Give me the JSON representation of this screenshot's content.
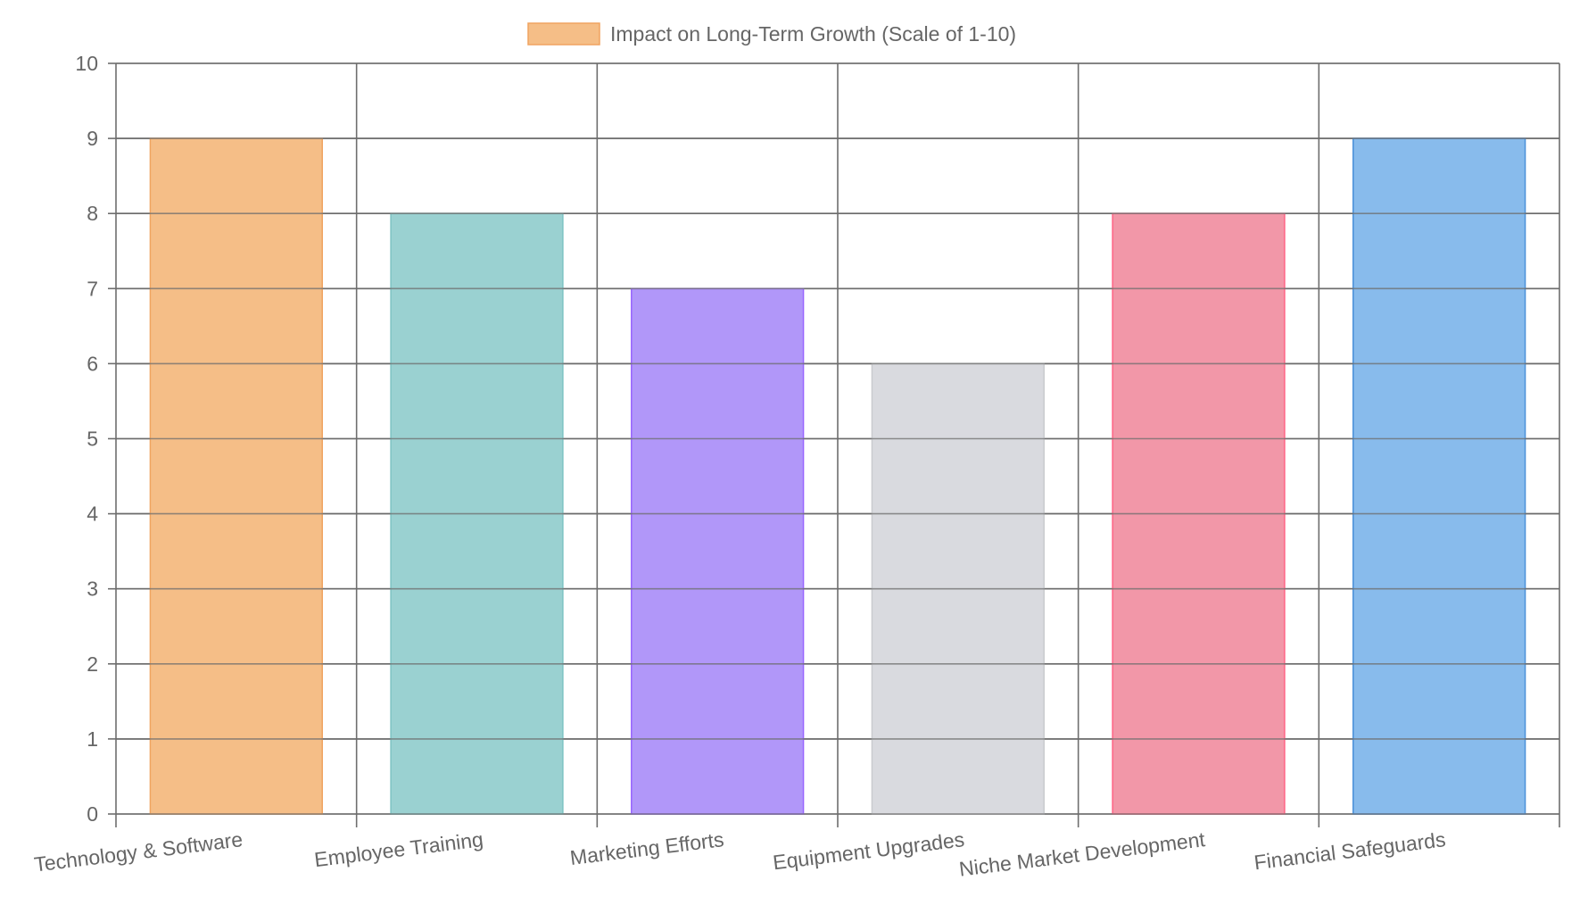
{
  "chart_data": {
    "type": "bar",
    "title": "",
    "xlabel": "",
    "ylabel": "",
    "ylim": [
      0,
      10
    ],
    "yticks": [
      "0",
      "1",
      "2",
      "3",
      "4",
      "5",
      "6",
      "7",
      "8",
      "9",
      "10"
    ],
    "legend_position": "top-center",
    "grid": true,
    "categories": [
      "Technology & Software",
      "Employee Training",
      "Marketing Efforts",
      "Equipment Upgrades",
      "Niche Market Development",
      "Financial Safeguards"
    ],
    "series": [
      {
        "name": "Impact on Long-Term Growth (Scale of 1-10)",
        "values": [
          9,
          8,
          7,
          6,
          8,
          9
        ],
        "fill_colors": [
          "#f5be87",
          "#9ad1d1",
          "#b197f9",
          "#d9dadf",
          "#f297a8",
          "#88bbec"
        ],
        "border_colors": [
          "#f0a460",
          "#7ec3c3",
          "#9966ff",
          "#c9cbcf",
          "#ff6384",
          "#4a90d9"
        ]
      }
    ],
    "legend": {
      "label": "Impact on Long-Term Growth (Scale of 1-10)",
      "swatch_fill": "#f5be87",
      "swatch_border": "#f0a460"
    }
  }
}
